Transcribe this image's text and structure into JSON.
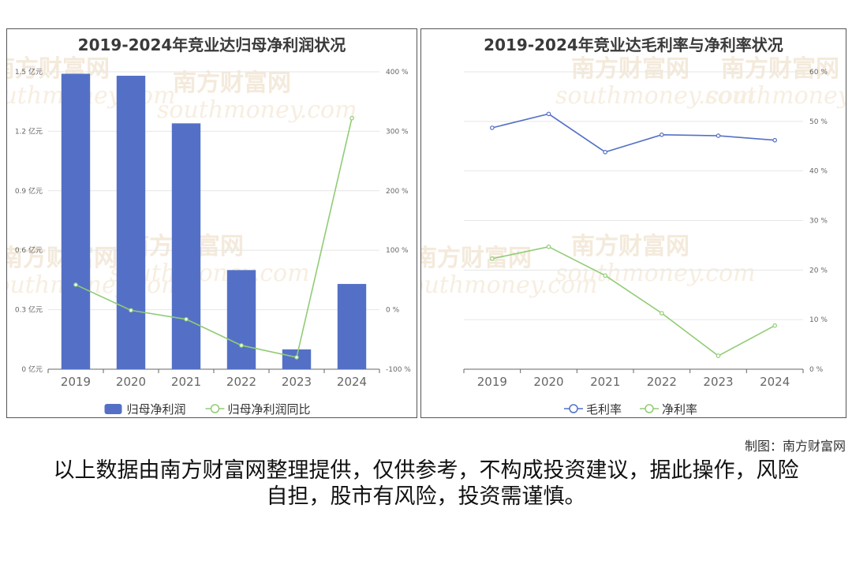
{
  "charts": [
    {
      "title": "2019-2024年竞业达归母净利润状况",
      "legend": [
        {
          "label": "归母净利润",
          "color": "#5470c6",
          "shape": "bar"
        },
        {
          "label": "归母净利润同比",
          "color": "#91cc75",
          "shape": "line"
        }
      ]
    },
    {
      "title": "2019-2024年竞业达毛利率与净利率状况",
      "legend": [
        {
          "label": "毛利率",
          "color": "#5470c6",
          "shape": "line"
        },
        {
          "label": "净利率",
          "color": "#91cc75",
          "shape": "line"
        }
      ]
    }
  ],
  "watermark": {
    "cn": "南方财富网",
    "en": "southmoney.com"
  },
  "credit": "制图：南方财富网",
  "disclaimer": "以上数据由南方财富网整理提供，仅供参考，不构成投资建议，据此操作，风险自担，股市有风险，投资需谨慎。",
  "chart_data": [
    {
      "type": "bar",
      "title": "2019-2024年竞业达归母净利润状况",
      "categories": [
        "2019",
        "2020",
        "2021",
        "2022",
        "2023",
        "2024"
      ],
      "series": [
        {
          "name": "归母净利润",
          "type": "bar",
          "axis": "left",
          "color": "#5470c6",
          "values": [
            1.49,
            1.48,
            1.24,
            0.5,
            0.1,
            0.43
          ]
        },
        {
          "name": "归母净利润同比",
          "type": "line",
          "axis": "right",
          "color": "#91cc75",
          "values": [
            42,
            -1,
            -16,
            -60,
            -80,
            322
          ]
        }
      ],
      "left_axis": {
        "ticks": [
          "0 亿元",
          "0.3 亿元",
          "0.6 亿元",
          "0.9 亿元",
          "1.2 亿元",
          "1.5 亿元"
        ],
        "ylim": [
          0,
          1.5
        ]
      },
      "right_axis": {
        "ticks": [
          "-100 %",
          "0 %",
          "100 %",
          "200 %",
          "300 %",
          "400 %"
        ],
        "ylim": [
          -100,
          400
        ]
      },
      "grid": true,
      "legend_position": "bottom"
    },
    {
      "type": "line",
      "title": "2019-2024年竞业达毛利率与净利率状况",
      "categories": [
        "2019",
        "2020",
        "2021",
        "2022",
        "2023",
        "2024"
      ],
      "series": [
        {
          "name": "毛利率",
          "axis": "right",
          "color": "#5470c6",
          "values": [
            48.7,
            51.5,
            43.8,
            47.3,
            47.1,
            46.2
          ]
        },
        {
          "name": "净利率",
          "axis": "right",
          "color": "#91cc75",
          "values": [
            22.3,
            24.7,
            18.9,
            11.3,
            2.7,
            8.8
          ]
        }
      ],
      "right_axis": {
        "ticks": [
          "0 %",
          "10 %",
          "20 %",
          "30 %",
          "40 %",
          "50 %",
          "60 %"
        ],
        "ylim": [
          0,
          60
        ]
      },
      "grid": true,
      "legend_position": "bottom"
    }
  ]
}
